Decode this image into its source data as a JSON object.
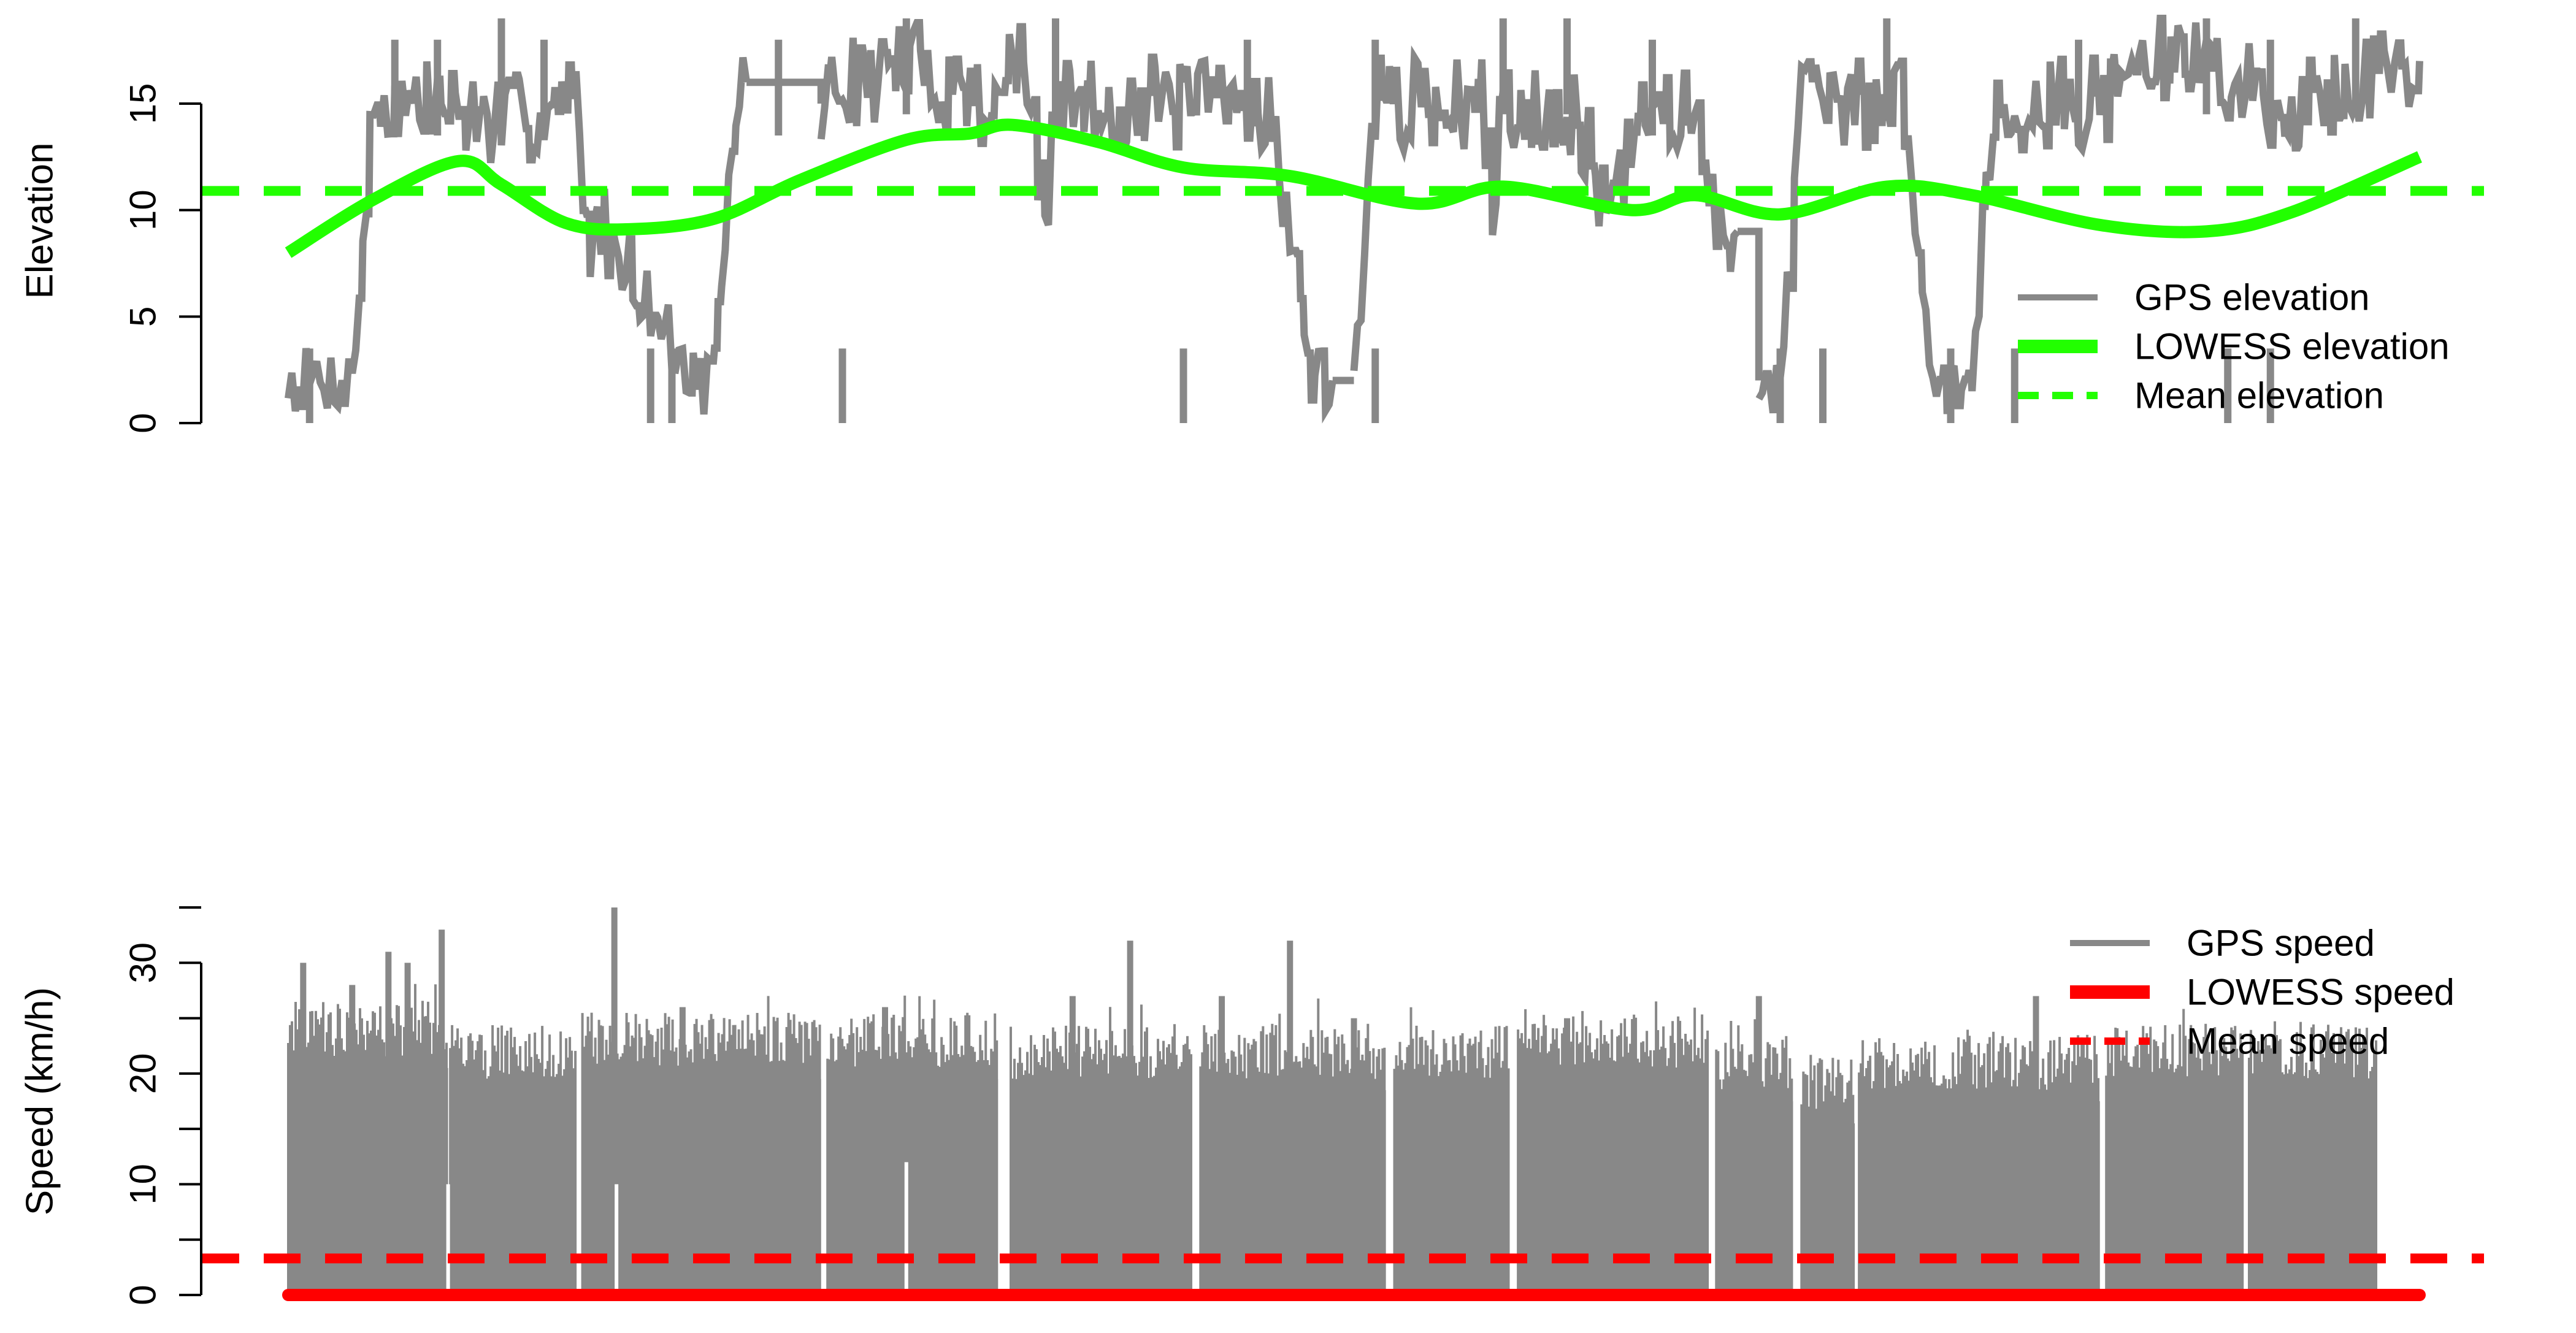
{
  "colors": {
    "gps": "#888888",
    "elevation_accent": "#22ff00",
    "speed_accent": "#ff0000",
    "axis": "#000000"
  },
  "chart_data": [
    {
      "type": "line",
      "ylabel": "Elevation",
      "ylim": [
        0,
        19
      ],
      "yticks": [
        0,
        5,
        10,
        15
      ],
      "ytick_labels": [
        "0",
        "5",
        "10",
        "15"
      ],
      "x_axis_visible": false,
      "xlim": [
        0,
        1
      ],
      "legend": {
        "position": "right",
        "entries": [
          "GPS elevation",
          "LOWESS elevation",
          "Mean elevation"
        ]
      },
      "series": [
        {
          "name": "GPS elevation",
          "style": "solid-thin",
          "color": "#888888",
          "segments": [
            {
              "x": [
                0.0,
                0.03,
                0.04,
                0.05,
                0.07,
                0.1,
                0.13,
                0.135,
                0.14,
                0.15,
                0.19,
                0.2,
                0.21,
                0.215
              ],
              "y": [
                2,
                2,
                15,
                15,
                15,
                14,
                15,
                15,
                9,
                9,
                2,
                2,
                15,
                16
              ]
            },
            {
              "x": [
                0.25,
                0.26,
                0.27,
                0.29,
                0.33,
                0.34,
                0.345,
                0.355,
                0.36,
                0.4,
                0.42,
                0.43,
                0.46,
                0.47,
                0.48,
                0.49
              ],
              "y": [
                15,
                16,
                16,
                17,
                15,
                17,
                17,
                9,
                15,
                15,
                15,
                15,
                15,
                9,
                2,
                2
              ]
            },
            {
              "x": [
                0.5,
                0.51,
                0.52,
                0.56,
                0.565,
                0.57,
                0.58,
                0.6,
                0.62,
                0.64,
                0.65,
                0.66,
                0.67,
                0.68
              ],
              "y": [
                2,
                15,
                15,
                15,
                10,
                15,
                15,
                15,
                10,
                15,
                15,
                14,
                9,
                9
              ]
            },
            {
              "x": [
                0.69,
                0.7,
                0.71,
                0.75,
                0.76,
                0.77,
                0.78,
                0.79,
                0.8,
                0.85,
                0.86,
                0.87,
                0.88,
                0.9,
                0.93,
                0.95,
                0.97,
                1.0
              ],
              "y": [
                2,
                2,
                15,
                15,
                15,
                2,
                2,
                2,
                15,
                15,
                16,
                17,
                17,
                17,
                15,
                15,
                16,
                17
              ]
            }
          ],
          "peaks": [
            {
              "x": 0.05,
              "y": 18
            },
            {
              "x": 0.07,
              "y": 18
            },
            {
              "x": 0.1,
              "y": 19
            },
            {
              "x": 0.12,
              "y": 18
            },
            {
              "x": 0.23,
              "y": 18
            },
            {
              "x": 0.29,
              "y": 19
            },
            {
              "x": 0.36,
              "y": 19
            },
            {
              "x": 0.45,
              "y": 18
            },
            {
              "x": 0.51,
              "y": 18
            },
            {
              "x": 0.57,
              "y": 19
            },
            {
              "x": 0.6,
              "y": 19
            },
            {
              "x": 0.64,
              "y": 18
            },
            {
              "x": 0.75,
              "y": 19
            },
            {
              "x": 0.84,
              "y": 18
            },
            {
              "x": 0.9,
              "y": 19
            },
            {
              "x": 0.93,
              "y": 18
            },
            {
              "x": 0.97,
              "y": 19
            }
          ],
          "troughs": [
            {
              "x": 0.01,
              "y": 0
            },
            {
              "x": 0.17,
              "y": 0
            },
            {
              "x": 0.18,
              "y": 0
            },
            {
              "x": 0.26,
              "y": 0
            },
            {
              "x": 0.42,
              "y": 0
            },
            {
              "x": 0.51,
              "y": 0
            },
            {
              "x": 0.7,
              "y": 0
            },
            {
              "x": 0.72,
              "y": 0
            },
            {
              "x": 0.78,
              "y": 0
            },
            {
              "x": 0.81,
              "y": 0
            },
            {
              "x": 0.91,
              "y": 0
            },
            {
              "x": 0.93,
              "y": 0
            }
          ]
        },
        {
          "name": "LOWESS elevation",
          "style": "solid-thick",
          "color": "#22ff00",
          "x": [
            0.0,
            0.04,
            0.08,
            0.1,
            0.13,
            0.16,
            0.2,
            0.24,
            0.29,
            0.32,
            0.34,
            0.38,
            0.42,
            0.47,
            0.53,
            0.57,
            0.63,
            0.66,
            0.7,
            0.75,
            0.79,
            0.85,
            0.9,
            0.94,
            1.0
          ],
          "y": [
            8.0,
            10.5,
            12.3,
            11.2,
            9.4,
            9.1,
            9.6,
            11.4,
            13.3,
            13.6,
            14.0,
            13.2,
            12.0,
            11.6,
            10.3,
            11.1,
            10.0,
            10.7,
            9.8,
            11.1,
            10.7,
            9.3,
            9.0,
            9.9,
            12.5
          ]
        },
        {
          "name": "Mean elevation",
          "style": "dashed",
          "color": "#22ff00",
          "y": 10.9
        }
      ]
    },
    {
      "type": "line",
      "ylabel": "Speed (km/h)",
      "ylim": [
        0,
        35
      ],
      "yticks": [
        0,
        10,
        20,
        30
      ],
      "ytick_labels": [
        "0",
        "10",
        "20",
        "30"
      ],
      "x_axis_visible": false,
      "xlim": [
        0,
        1
      ],
      "legend": {
        "position": "top-right",
        "entries": [
          "GPS speed",
          "LOWESS speed",
          "Mean speed"
        ]
      },
      "series": [
        {
          "name": "GPS speed",
          "style": "dense-spikes",
          "color": "#888888",
          "blocks": [
            {
              "x0": 0.0,
              "x1": 0.075,
              "level": 24
            },
            {
              "x0": 0.076,
              "x1": 0.135,
              "level": 22
            },
            {
              "x0": 0.138,
              "x1": 0.25,
              "level": 23
            },
            {
              "x0": 0.253,
              "x1": 0.333,
              "level": 23
            },
            {
              "x0": 0.339,
              "x1": 0.424,
              "level": 22
            },
            {
              "x0": 0.428,
              "x1": 0.515,
              "level": 22
            },
            {
              "x0": 0.519,
              "x1": 0.573,
              "level": 22
            },
            {
              "x0": 0.577,
              "x1": 0.666,
              "level": 23
            },
            {
              "x0": 0.67,
              "x1": 0.706,
              "level": 21
            },
            {
              "x0": 0.71,
              "x1": 0.735,
              "level": 19
            },
            {
              "x0": 0.737,
              "x1": 0.85,
              "level": 21
            },
            {
              "x0": 0.853,
              "x1": 0.917,
              "level": 22
            },
            {
              "x0": 0.92,
              "x1": 0.98,
              "level": 22
            }
          ],
          "peaks": [
            {
              "x": 0.007,
              "y": 30
            },
            {
              "x": 0.03,
              "y": 28
            },
            {
              "x": 0.047,
              "y": 31
            },
            {
              "x": 0.056,
              "y": 30
            },
            {
              "x": 0.072,
              "y": 33
            },
            {
              "x": 0.153,
              "y": 35
            },
            {
              "x": 0.185,
              "y": 26
            },
            {
              "x": 0.28,
              "y": 26
            },
            {
              "x": 0.368,
              "y": 27
            },
            {
              "x": 0.395,
              "y": 32
            },
            {
              "x": 0.438,
              "y": 27
            },
            {
              "x": 0.47,
              "y": 32
            },
            {
              "x": 0.5,
              "y": 25
            },
            {
              "x": 0.6,
              "y": 25
            },
            {
              "x": 0.69,
              "y": 27
            },
            {
              "x": 0.82,
              "y": 27
            }
          ],
          "dips": [
            {
              "x": 0.075,
              "y": 10
            },
            {
              "x": 0.154,
              "y": 10
            },
            {
              "x": 0.29,
              "y": 12
            },
            {
              "x": 0.335,
              "y": 15
            }
          ]
        },
        {
          "name": "LOWESS speed",
          "style": "solid-thick",
          "color": "#ff0000",
          "x": [
            0.0,
            1.0
          ],
          "y": [
            0,
            0
          ]
        },
        {
          "name": "Mean speed",
          "style": "dashed",
          "color": "#ff0000",
          "y": 3.3
        }
      ]
    }
  ]
}
